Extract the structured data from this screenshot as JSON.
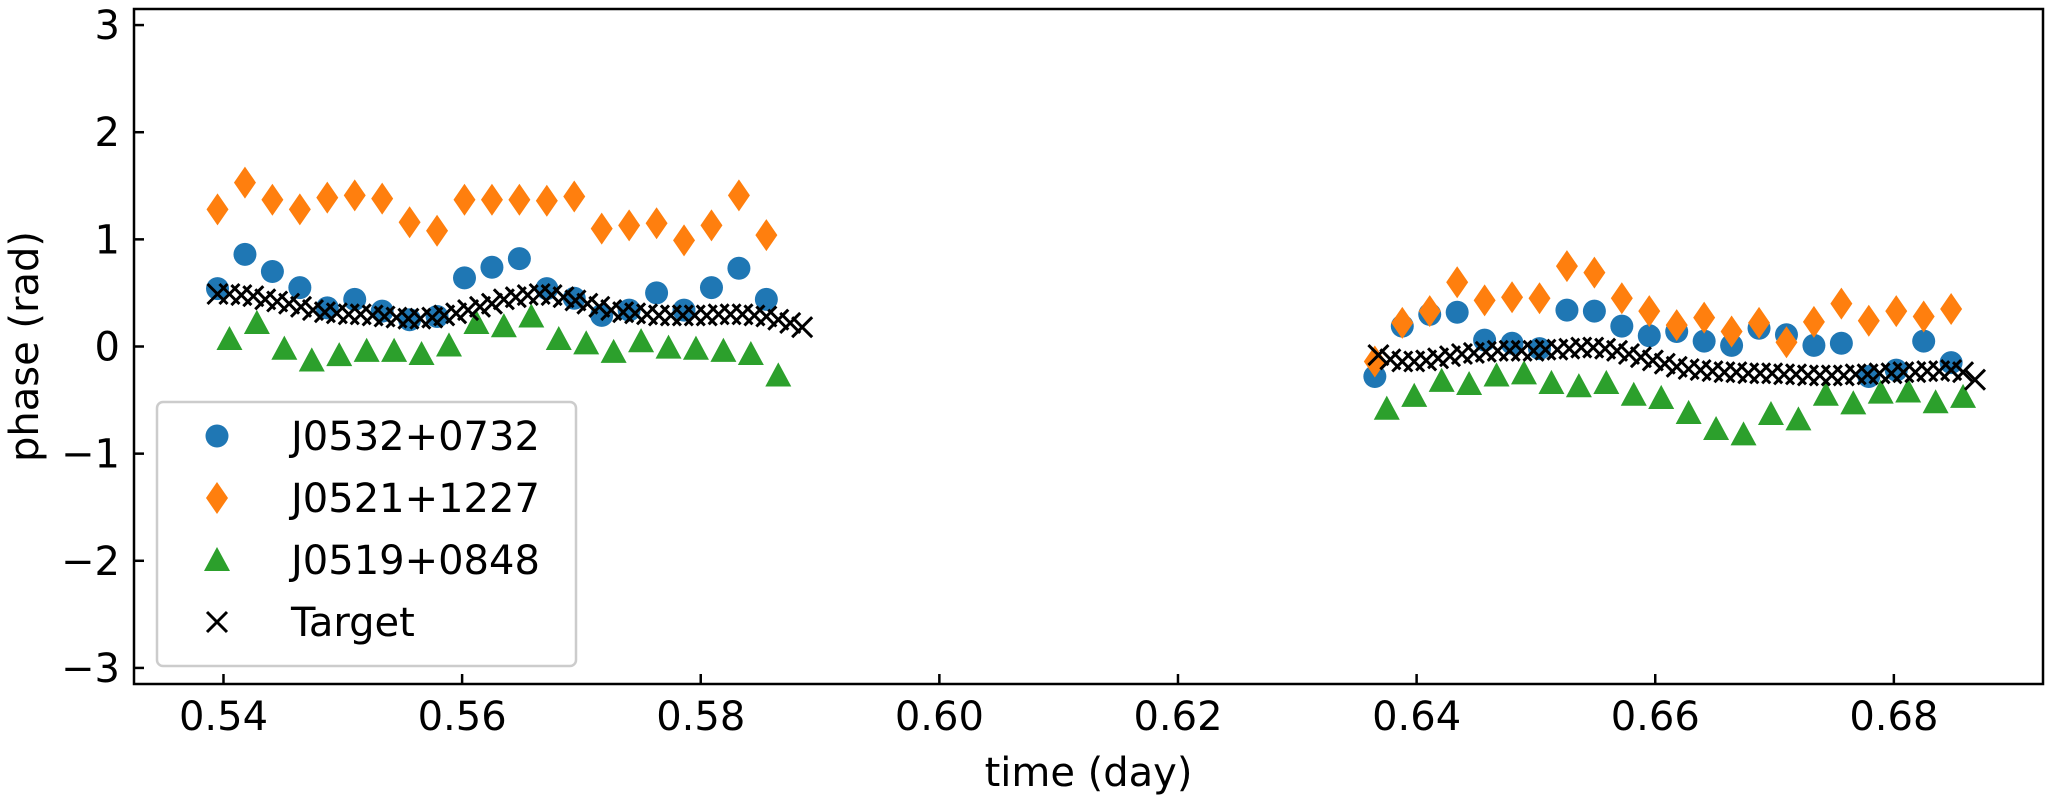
{
  "chart_data": {
    "type": "scatter",
    "title": "",
    "xlabel": "time (day)",
    "ylabel": "phase (rad)",
    "xlim": [
      0.5325,
      0.6925
    ],
    "ylim": [
      -3.15,
      3.15
    ],
    "xticks": [
      0.54,
      0.56,
      0.58,
      0.6,
      0.62,
      0.64,
      0.66,
      0.68
    ],
    "xtick_labels": [
      "0.54",
      "0.56",
      "0.58",
      "0.60",
      "0.62",
      "0.64",
      "0.66",
      "0.68"
    ],
    "yticks": [
      -3,
      -2,
      -1,
      0,
      1,
      2,
      3
    ],
    "ytick_labels": [
      "−3",
      "−2",
      "−1",
      "0",
      "1",
      "2",
      "3"
    ],
    "tick_direction": "in",
    "grid": false,
    "legend_position": "lower-left",
    "series": [
      {
        "name": "J0532+0732",
        "marker": "circle",
        "color": "#1f77b4",
        "points": [
          [
            0.5395,
            0.54
          ],
          [
            0.5418,
            0.86
          ],
          [
            0.5441,
            0.7
          ],
          [
            0.5464,
            0.55
          ],
          [
            0.5487,
            0.36
          ],
          [
            0.551,
            0.44
          ],
          [
            0.5533,
            0.33
          ],
          [
            0.5556,
            0.25
          ],
          [
            0.5579,
            0.28
          ],
          [
            0.5602,
            0.64
          ],
          [
            0.5625,
            0.74
          ],
          [
            0.5648,
            0.82
          ],
          [
            0.5671,
            0.54
          ],
          [
            0.5694,
            0.45
          ],
          [
            0.5717,
            0.29
          ],
          [
            0.574,
            0.34
          ],
          [
            0.5763,
            0.5
          ],
          [
            0.5786,
            0.34
          ],
          [
            0.5809,
            0.55
          ],
          [
            0.5832,
            0.73
          ],
          [
            0.5855,
            0.44
          ],
          [
            0.6365,
            -0.28
          ],
          [
            0.6388,
            0.19
          ],
          [
            0.6411,
            0.3
          ],
          [
            0.6434,
            0.32
          ],
          [
            0.6457,
            0.06
          ],
          [
            0.648,
            0.03
          ],
          [
            0.6503,
            -0.02
          ],
          [
            0.6526,
            0.34
          ],
          [
            0.6549,
            0.33
          ],
          [
            0.6572,
            0.19
          ],
          [
            0.6595,
            0.1
          ],
          [
            0.6618,
            0.14
          ],
          [
            0.6641,
            0.05
          ],
          [
            0.6664,
            0.01
          ],
          [
            0.6687,
            0.17
          ],
          [
            0.671,
            0.11
          ],
          [
            0.6733,
            0.01
          ],
          [
            0.6756,
            0.03
          ],
          [
            0.6779,
            -0.28
          ],
          [
            0.6802,
            -0.22
          ],
          [
            0.6825,
            0.05
          ],
          [
            0.6848,
            -0.15
          ]
        ]
      },
      {
        "name": "J0521+1227",
        "marker": "diamond",
        "color": "#ff7f0e",
        "points": [
          [
            0.5395,
            1.28
          ],
          [
            0.5418,
            1.53
          ],
          [
            0.5441,
            1.37
          ],
          [
            0.5464,
            1.28
          ],
          [
            0.5487,
            1.39
          ],
          [
            0.551,
            1.41
          ],
          [
            0.5533,
            1.38
          ],
          [
            0.5556,
            1.16
          ],
          [
            0.5579,
            1.08
          ],
          [
            0.5602,
            1.37
          ],
          [
            0.5625,
            1.37
          ],
          [
            0.5648,
            1.37
          ],
          [
            0.5671,
            1.36
          ],
          [
            0.5694,
            1.4
          ],
          [
            0.5717,
            1.1
          ],
          [
            0.574,
            1.13
          ],
          [
            0.5763,
            1.15
          ],
          [
            0.5786,
            0.99
          ],
          [
            0.5809,
            1.13
          ],
          [
            0.5832,
            1.41
          ],
          [
            0.5855,
            1.04
          ],
          [
            0.6365,
            -0.14
          ],
          [
            0.6388,
            0.22
          ],
          [
            0.6411,
            0.33
          ],
          [
            0.6434,
            0.6
          ],
          [
            0.6457,
            0.43
          ],
          [
            0.648,
            0.46
          ],
          [
            0.6503,
            0.45
          ],
          [
            0.6526,
            0.75
          ],
          [
            0.6549,
            0.69
          ],
          [
            0.6572,
            0.45
          ],
          [
            0.6595,
            0.33
          ],
          [
            0.6618,
            0.2
          ],
          [
            0.6641,
            0.27
          ],
          [
            0.6664,
            0.14
          ],
          [
            0.6687,
            0.22
          ],
          [
            0.671,
            0.04
          ],
          [
            0.6733,
            0.23
          ],
          [
            0.6756,
            0.4
          ],
          [
            0.6779,
            0.24
          ],
          [
            0.6802,
            0.33
          ],
          [
            0.6825,
            0.28
          ],
          [
            0.6848,
            0.35
          ]
        ]
      },
      {
        "name": "J0519+0848",
        "marker": "triangle",
        "color": "#2ca02c",
        "points": [
          [
            0.5405,
            0.07
          ],
          [
            0.5428,
            0.22
          ],
          [
            0.5451,
            -0.02
          ],
          [
            0.5474,
            -0.13
          ],
          [
            0.5497,
            -0.08
          ],
          [
            0.552,
            -0.04
          ],
          [
            0.5543,
            -0.04
          ],
          [
            0.5566,
            -0.07
          ],
          [
            0.5589,
            0.01
          ],
          [
            0.5612,
            0.22
          ],
          [
            0.5635,
            0.19
          ],
          [
            0.5658,
            0.28
          ],
          [
            0.5681,
            0.07
          ],
          [
            0.5704,
            0.03
          ],
          [
            0.5727,
            -0.05
          ],
          [
            0.575,
            0.05
          ],
          [
            0.5773,
            -0.01
          ],
          [
            0.5796,
            -0.02
          ],
          [
            0.5819,
            -0.04
          ],
          [
            0.5842,
            -0.07
          ],
          [
            0.5865,
            -0.27
          ],
          [
            0.6375,
            -0.58
          ],
          [
            0.6398,
            -0.46
          ],
          [
            0.6421,
            -0.32
          ],
          [
            0.6444,
            -0.35
          ],
          [
            0.6467,
            -0.27
          ],
          [
            0.649,
            -0.25
          ],
          [
            0.6513,
            -0.34
          ],
          [
            0.6536,
            -0.37
          ],
          [
            0.6559,
            -0.34
          ],
          [
            0.6582,
            -0.45
          ],
          [
            0.6605,
            -0.48
          ],
          [
            0.6628,
            -0.62
          ],
          [
            0.6651,
            -0.77
          ],
          [
            0.6674,
            -0.82
          ],
          [
            0.6697,
            -0.63
          ],
          [
            0.672,
            -0.68
          ],
          [
            0.6743,
            -0.45
          ],
          [
            0.6766,
            -0.53
          ],
          [
            0.6789,
            -0.43
          ],
          [
            0.6812,
            -0.42
          ],
          [
            0.6835,
            -0.52
          ],
          [
            0.6858,
            -0.47
          ]
        ]
      },
      {
        "name": "Target",
        "marker": "x",
        "color": "#000000",
        "points": [
          [
            0.5395,
            0.49
          ],
          [
            0.5405,
            0.49
          ],
          [
            0.5415,
            0.48
          ],
          [
            0.5425,
            0.47
          ],
          [
            0.5435,
            0.44
          ],
          [
            0.5445,
            0.42
          ],
          [
            0.5455,
            0.4
          ],
          [
            0.5465,
            0.37
          ],
          [
            0.5475,
            0.34
          ],
          [
            0.5485,
            0.32
          ],
          [
            0.5495,
            0.31
          ],
          [
            0.5505,
            0.3
          ],
          [
            0.5515,
            0.3
          ],
          [
            0.5525,
            0.29
          ],
          [
            0.5535,
            0.28
          ],
          [
            0.5545,
            0.27
          ],
          [
            0.5555,
            0.26
          ],
          [
            0.5565,
            0.26
          ],
          [
            0.5575,
            0.27
          ],
          [
            0.5585,
            0.29
          ],
          [
            0.5595,
            0.31
          ],
          [
            0.5605,
            0.34
          ],
          [
            0.5615,
            0.37
          ],
          [
            0.5625,
            0.4
          ],
          [
            0.5635,
            0.44
          ],
          [
            0.5645,
            0.46
          ],
          [
            0.5655,
            0.48
          ],
          [
            0.5665,
            0.49
          ],
          [
            0.5675,
            0.48
          ],
          [
            0.5685,
            0.46
          ],
          [
            0.5695,
            0.43
          ],
          [
            0.5705,
            0.4
          ],
          [
            0.5715,
            0.37
          ],
          [
            0.5725,
            0.34
          ],
          [
            0.5735,
            0.32
          ],
          [
            0.5745,
            0.31
          ],
          [
            0.5755,
            0.3
          ],
          [
            0.5765,
            0.29
          ],
          [
            0.5775,
            0.29
          ],
          [
            0.5785,
            0.29
          ],
          [
            0.5795,
            0.29
          ],
          [
            0.5805,
            0.29
          ],
          [
            0.5815,
            0.3
          ],
          [
            0.5825,
            0.3
          ],
          [
            0.5835,
            0.3
          ],
          [
            0.5845,
            0.29
          ],
          [
            0.5855,
            0.28
          ],
          [
            0.5865,
            0.25
          ],
          [
            0.5875,
            0.22
          ],
          [
            0.5885,
            0.18
          ],
          [
            0.6368,
            -0.08
          ],
          [
            0.6378,
            -0.12
          ],
          [
            0.6388,
            -0.14
          ],
          [
            0.6398,
            -0.14
          ],
          [
            0.6408,
            -0.13
          ],
          [
            0.6418,
            -0.11
          ],
          [
            0.6428,
            -0.09
          ],
          [
            0.6438,
            -0.07
          ],
          [
            0.6448,
            -0.06
          ],
          [
            0.6458,
            -0.05
          ],
          [
            0.6468,
            -0.04
          ],
          [
            0.6478,
            -0.04
          ],
          [
            0.6488,
            -0.04
          ],
          [
            0.6498,
            -0.04
          ],
          [
            0.6508,
            -0.03
          ],
          [
            0.6518,
            -0.03
          ],
          [
            0.6528,
            -0.02
          ],
          [
            0.6538,
            -0.01
          ],
          [
            0.6548,
            -0.01
          ],
          [
            0.6558,
            -0.02
          ],
          [
            0.6568,
            -0.04
          ],
          [
            0.6578,
            -0.07
          ],
          [
            0.6588,
            -0.1
          ],
          [
            0.6598,
            -0.13
          ],
          [
            0.6608,
            -0.16
          ],
          [
            0.6618,
            -0.19
          ],
          [
            0.6628,
            -0.21
          ],
          [
            0.6638,
            -0.22
          ],
          [
            0.6648,
            -0.23
          ],
          [
            0.6658,
            -0.24
          ],
          [
            0.6668,
            -0.24
          ],
          [
            0.6678,
            -0.25
          ],
          [
            0.6688,
            -0.25
          ],
          [
            0.6698,
            -0.25
          ],
          [
            0.6708,
            -0.26
          ],
          [
            0.6718,
            -0.26
          ],
          [
            0.6728,
            -0.27
          ],
          [
            0.6738,
            -0.27
          ],
          [
            0.6748,
            -0.27
          ],
          [
            0.6758,
            -0.27
          ],
          [
            0.6768,
            -0.26
          ],
          [
            0.6778,
            -0.26
          ],
          [
            0.6788,
            -0.25
          ],
          [
            0.6798,
            -0.25
          ],
          [
            0.6808,
            -0.24
          ],
          [
            0.6818,
            -0.24
          ],
          [
            0.6828,
            -0.23
          ],
          [
            0.6838,
            -0.23
          ],
          [
            0.6848,
            -0.22
          ],
          [
            0.6858,
            -0.24
          ],
          [
            0.6868,
            -0.31
          ]
        ]
      }
    ]
  }
}
